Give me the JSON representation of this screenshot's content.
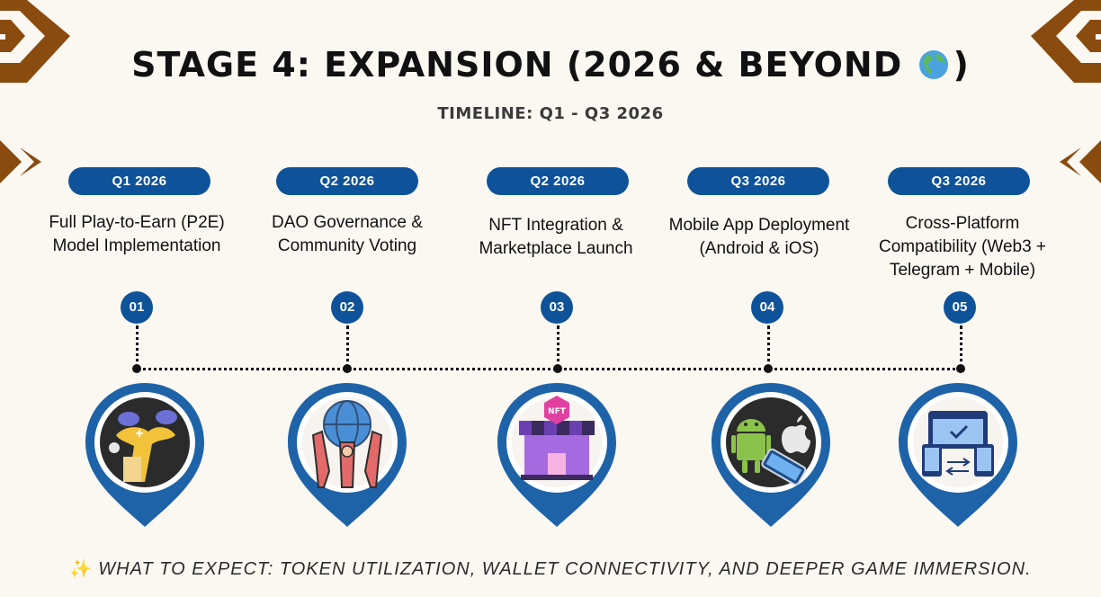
{
  "title": {
    "text": "STAGE 4: EXPANSION (2026 & BEYOND",
    "close": ")",
    "globe_icon": "globe-americas-icon"
  },
  "subtitle": "TIMELINE: Q1 - Q3 2026",
  "stages": [
    {
      "quarter": "Q1 2026",
      "number": "01",
      "description": "Full Play-to-Earn (P2E) Model Implementation",
      "icon": "game-controller-hands-icon"
    },
    {
      "quarter": "Q2 2026",
      "number": "02",
      "description": "DAO Governance & Community Voting",
      "icon": "community-globe-icon"
    },
    {
      "quarter": "Q2 2026",
      "number": "03",
      "description": "NFT Integration & Marketplace Launch",
      "icon": "nft-store-icon"
    },
    {
      "quarter": "Q3 2026",
      "number": "04",
      "description": "Mobile App Deployment (Android & iOS)",
      "icon": "android-apple-phone-icon"
    },
    {
      "quarter": "Q3 2026",
      "number": "05",
      "description": "Cross-Platform Compatibility (Web3 + Telegram + Mobile)",
      "icon": "cross-platform-devices-icon"
    }
  ],
  "footer": {
    "sparkle_icon": "sparkles-icon",
    "text": "WHAT TO EXPECT: TOKEN UTILIZATION, WALLET CONNECTIVITY, AND DEEPER GAME IMMERSION."
  },
  "colors": {
    "accent": "#0e539a",
    "background": "#fbf8f1",
    "decor": "#8a4b0f"
  }
}
